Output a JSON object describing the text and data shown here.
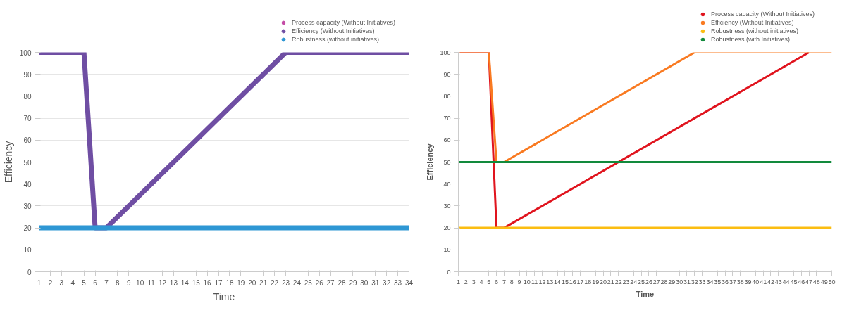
{
  "chart_data": [
    {
      "type": "line",
      "xlabel": "Time",
      "ylabel": "Efficiency",
      "xlim": [
        1,
        34
      ],
      "ylim": [
        0,
        100
      ],
      "xticks": [
        1,
        2,
        3,
        4,
        5,
        6,
        7,
        8,
        9,
        10,
        11,
        12,
        13,
        14,
        15,
        16,
        17,
        18,
        19,
        20,
        21,
        22,
        23,
        24,
        25,
        26,
        27,
        28,
        29,
        30,
        31,
        32,
        33,
        34
      ],
      "yticks": [
        0,
        10,
        20,
        30,
        40,
        50,
        60,
        70,
        80,
        90,
        100
      ],
      "grid": "y",
      "legend": "top right",
      "marker": "none",
      "line_style": "solid",
      "series": [
        {
          "name": "Process capacity (Without Initiatives)",
          "color": "#c44ba6",
          "values": [
            null
          ]
        },
        {
          "name": "Efficiency (Without Initiatives)",
          "color": "#6f4ea3",
          "x": [
            1,
            5,
            6,
            7,
            23,
            34
          ],
          "values": [
            100,
            100,
            20,
            20,
            100,
            100
          ]
        },
        {
          "name": "Robustness (without initiatives)",
          "color": "#2e97d4",
          "x": [
            1,
            34
          ],
          "values": [
            20,
            20
          ]
        }
      ]
    },
    {
      "type": "line",
      "xlabel": "Time",
      "ylabel": "Efficiency",
      "xlim": [
        1,
        50
      ],
      "ylim": [
        0,
        100
      ],
      "xticks": [
        1,
        2,
        3,
        4,
        5,
        6,
        7,
        8,
        9,
        10,
        11,
        12,
        13,
        14,
        15,
        16,
        17,
        18,
        19,
        20,
        21,
        22,
        23,
        24,
        25,
        26,
        27,
        28,
        29,
        30,
        31,
        32,
        33,
        34,
        35,
        36,
        37,
        38,
        39,
        40,
        41,
        42,
        43,
        44,
        45,
        46,
        47,
        48,
        49,
        50
      ],
      "yticks": [
        0,
        10,
        20,
        30,
        40,
        50,
        60,
        70,
        80,
        90,
        100
      ],
      "grid": false,
      "legend": "top right",
      "marker": "none",
      "line_style": "solid",
      "series": [
        {
          "name": "Process capacity (Without Initiatives)",
          "color": "#e0141e",
          "x": [
            1,
            5,
            6,
            7,
            47
          ],
          "values": [
            100,
            100,
            20,
            20,
            100
          ]
        },
        {
          "name": "Efficiency (Without Initiatives)",
          "color": "#f97a21",
          "x": [
            1,
            5,
            6,
            7,
            32,
            50
          ],
          "values": [
            100,
            100,
            50,
            50,
            100,
            100
          ]
        },
        {
          "name": "Robustness (without initiatives)",
          "color": "#fbbd12",
          "x": [
            1,
            50
          ],
          "values": [
            20,
            20
          ]
        },
        {
          "name": "Robustness (with Initiatives)",
          "color": "#128a3c",
          "x": [
            1,
            50
          ],
          "values": [
            50,
            50
          ]
        }
      ]
    }
  ]
}
